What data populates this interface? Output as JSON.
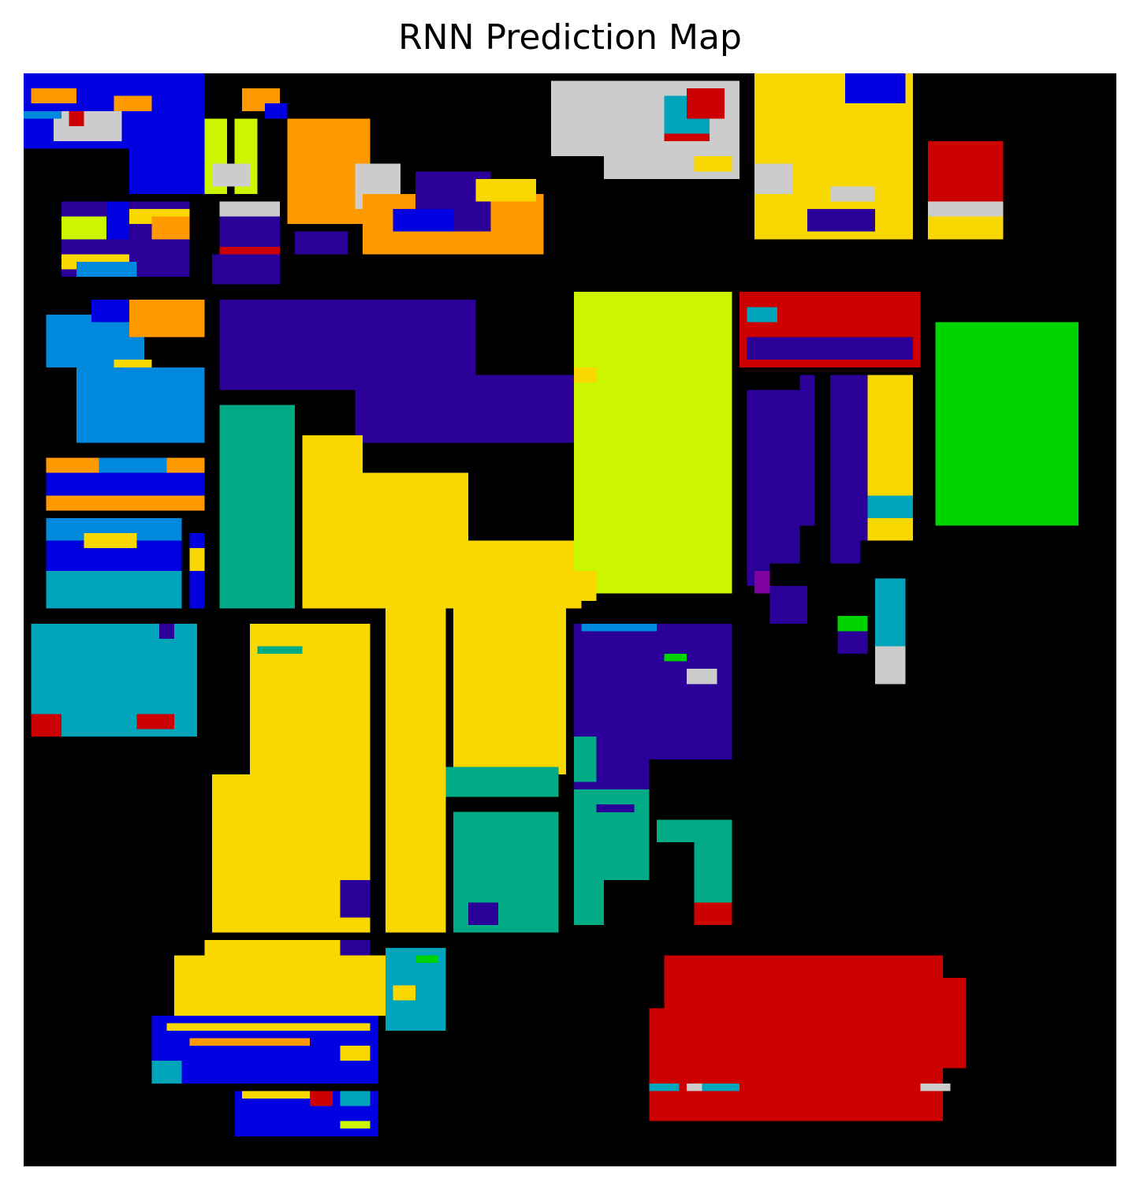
{
  "chart_data": {
    "type": "heatmap",
    "title": "RNN Prediction Map",
    "xlabel": "",
    "ylabel": "",
    "axes_visible": false,
    "grid": false,
    "legend": "none",
    "grid_size": [
      145,
      145
    ],
    "class_colors": {
      "background": "#000000",
      "blue": "#0000e0",
      "indigo": "#2a0098",
      "sky_blue": "#0088dd",
      "teal": "#00a5bc",
      "green_teal": "#00aa85",
      "green": "#00d400",
      "chartreuse": "#ccf500",
      "yellow": "#f8d800",
      "orange": "#ff9900",
      "red": "#cc0000",
      "light_gray": "#cccccc",
      "purple": "#8000a0"
    },
    "regions": [
      {
        "cls": "blue",
        "c": 0,
        "r": 0,
        "w": 24,
        "h": 10
      },
      {
        "cls": "blue",
        "c": 14,
        "r": 5,
        "w": 10,
        "h": 11
      },
      {
        "cls": "light_gray",
        "c": 4,
        "r": 5,
        "w": 9,
        "h": 4
      },
      {
        "cls": "sky_blue",
        "c": 0,
        "r": 5,
        "w": 5,
        "h": 1
      },
      {
        "cls": "orange",
        "c": 1,
        "r": 2,
        "w": 6,
        "h": 2
      },
      {
        "cls": "orange",
        "c": 12,
        "r": 3,
        "w": 5,
        "h": 2
      },
      {
        "cls": "red",
        "c": 6,
        "r": 5,
        "w": 2,
        "h": 2
      },
      {
        "cls": "indigo",
        "c": 5,
        "r": 17,
        "w": 17,
        "h": 10
      },
      {
        "cls": "chartreuse",
        "c": 5,
        "r": 19,
        "w": 6,
        "h": 3
      },
      {
        "cls": "yellow",
        "c": 14,
        "r": 18,
        "w": 8,
        "h": 2
      },
      {
        "cls": "orange",
        "c": 17,
        "r": 19,
        "w": 5,
        "h": 3
      },
      {
        "cls": "blue",
        "c": 11,
        "r": 17,
        "w": 3,
        "h": 5
      },
      {
        "cls": "yellow",
        "c": 5,
        "r": 24,
        "w": 9,
        "h": 2
      },
      {
        "cls": "sky_blue",
        "c": 7,
        "r": 25,
        "w": 8,
        "h": 2
      },
      {
        "cls": "chartreuse",
        "c": 24,
        "r": 6,
        "w": 3,
        "h": 10
      },
      {
        "cls": "chartreuse",
        "c": 28,
        "r": 6,
        "w": 3,
        "h": 10
      },
      {
        "cls": "light_gray",
        "c": 25,
        "r": 12,
        "w": 5,
        "h": 3
      },
      {
        "cls": "orange",
        "c": 35,
        "r": 6,
        "w": 11,
        "h": 14
      },
      {
        "cls": "orange",
        "c": 29,
        "r": 2,
        "w": 5,
        "h": 3
      },
      {
        "cls": "blue",
        "c": 32,
        "r": 4,
        "w": 3,
        "h": 2
      },
      {
        "cls": "light_gray",
        "c": 44,
        "r": 12,
        "w": 6,
        "h": 6
      },
      {
        "cls": "orange",
        "c": 45,
        "r": 16,
        "w": 24,
        "h": 8
      },
      {
        "cls": "indigo",
        "c": 52,
        "r": 13,
        "w": 10,
        "h": 8
      },
      {
        "cls": "blue",
        "c": 49,
        "r": 18,
        "w": 8,
        "h": 3
      },
      {
        "cls": "yellow",
        "c": 60,
        "r": 14,
        "w": 8,
        "h": 3
      },
      {
        "cls": "light_gray",
        "c": 26,
        "r": 17,
        "w": 8,
        "h": 3
      },
      {
        "cls": "indigo",
        "c": 26,
        "r": 19,
        "w": 8,
        "h": 5
      },
      {
        "cls": "red",
        "c": 26,
        "r": 23,
        "w": 8,
        "h": 1
      },
      {
        "cls": "indigo",
        "c": 25,
        "r": 24,
        "w": 9,
        "h": 4
      },
      {
        "cls": "indigo",
        "c": 36,
        "r": 21,
        "w": 7,
        "h": 3
      },
      {
        "cls": "light_gray",
        "c": 70,
        "r": 1,
        "w": 25,
        "h": 10
      },
      {
        "cls": "light_gray",
        "c": 77,
        "r": 11,
        "w": 18,
        "h": 3
      },
      {
        "cls": "teal",
        "c": 85,
        "r": 3,
        "w": 6,
        "h": 5
      },
      {
        "cls": "red",
        "c": 88,
        "r": 2,
        "w": 5,
        "h": 4
      },
      {
        "cls": "red",
        "c": 85,
        "r": 8,
        "w": 6,
        "h": 1
      },
      {
        "cls": "yellow",
        "c": 89,
        "r": 11,
        "w": 5,
        "h": 2
      },
      {
        "cls": "yellow",
        "c": 97,
        "r": 0,
        "w": 21,
        "h": 22
      },
      {
        "cls": "blue",
        "c": 109,
        "r": 0,
        "w": 8,
        "h": 4
      },
      {
        "cls": "light_gray",
        "c": 97,
        "r": 12,
        "w": 5,
        "h": 4
      },
      {
        "cls": "indigo",
        "c": 104,
        "r": 18,
        "w": 9,
        "h": 3
      },
      {
        "cls": "light_gray",
        "c": 107,
        "r": 15,
        "w": 6,
        "h": 2
      },
      {
        "cls": "red",
        "c": 120,
        "r": 9,
        "w": 10,
        "h": 8
      },
      {
        "cls": "light_gray",
        "c": 120,
        "r": 17,
        "w": 10,
        "h": 2
      },
      {
        "cls": "yellow",
        "c": 120,
        "r": 19,
        "w": 10,
        "h": 3
      },
      {
        "cls": "sky_blue",
        "c": 3,
        "r": 32,
        "w": 13,
        "h": 7
      },
      {
        "cls": "sky_blue",
        "c": 7,
        "r": 39,
        "w": 17,
        "h": 10
      },
      {
        "cls": "orange",
        "c": 14,
        "r": 30,
        "w": 10,
        "h": 5
      },
      {
        "cls": "blue",
        "c": 9,
        "r": 30,
        "w": 5,
        "h": 3
      },
      {
        "cls": "yellow",
        "c": 12,
        "r": 38,
        "w": 5,
        "h": 1
      },
      {
        "cls": "orange",
        "c": 3,
        "r": 51,
        "w": 21,
        "h": 7
      },
      {
        "cls": "blue",
        "c": 3,
        "r": 53,
        "w": 21,
        "h": 3
      },
      {
        "cls": "sky_blue",
        "c": 10,
        "r": 51,
        "w": 9,
        "h": 2
      },
      {
        "cls": "blue",
        "c": 3,
        "r": 59,
        "w": 18,
        "h": 12
      },
      {
        "cls": "sky_blue",
        "c": 3,
        "r": 59,
        "w": 18,
        "h": 3
      },
      {
        "cls": "yellow",
        "c": 8,
        "r": 61,
        "w": 7,
        "h": 2
      },
      {
        "cls": "teal",
        "c": 3,
        "r": 66,
        "w": 18,
        "h": 5
      },
      {
        "cls": "blue",
        "c": 22,
        "r": 61,
        "w": 2,
        "h": 10
      },
      {
        "cls": "yellow",
        "c": 22,
        "r": 63,
        "w": 2,
        "h": 3
      },
      {
        "cls": "indigo",
        "c": 26,
        "r": 30,
        "w": 34,
        "h": 12
      },
      {
        "cls": "indigo",
        "c": 44,
        "r": 40,
        "w": 30,
        "h": 9
      },
      {
        "cls": "green_teal",
        "c": 26,
        "r": 44,
        "w": 10,
        "h": 27
      },
      {
        "cls": "green_teal",
        "c": 36,
        "r": 48,
        "w": 0,
        "h": 0
      },
      {
        "cls": "yellow",
        "c": 37,
        "r": 48,
        "w": 8,
        "h": 23
      },
      {
        "cls": "yellow",
        "c": 45,
        "r": 53,
        "w": 14,
        "h": 18
      },
      {
        "cls": "yellow",
        "c": 49,
        "r": 62,
        "w": 25,
        "h": 9
      },
      {
        "cls": "chartreuse",
        "c": 73,
        "r": 29,
        "w": 21,
        "h": 40
      },
      {
        "cls": "yellow",
        "c": 73,
        "r": 39,
        "w": 3,
        "h": 2
      },
      {
        "cls": "yellow",
        "c": 73,
        "r": 66,
        "w": 3,
        "h": 4
      },
      {
        "cls": "red",
        "c": 95,
        "r": 29,
        "w": 24,
        "h": 10
      },
      {
        "cls": "teal",
        "c": 96,
        "r": 31,
        "w": 4,
        "h": 2
      },
      {
        "cls": "indigo",
        "c": 96,
        "r": 35,
        "w": 22,
        "h": 3
      },
      {
        "cls": "indigo",
        "c": 96,
        "r": 42,
        "w": 7,
        "h": 23
      },
      {
        "cls": "indigo",
        "c": 103,
        "r": 40,
        "w": 2,
        "h": 20
      },
      {
        "cls": "indigo",
        "c": 107,
        "r": 40,
        "w": 4,
        "h": 25
      },
      {
        "cls": "indigo",
        "c": 111,
        "r": 40,
        "w": 3,
        "h": 22
      },
      {
        "cls": "blue",
        "c": 113,
        "r": 46,
        "w": 1,
        "h": 10
      },
      {
        "cls": "yellow",
        "c": 113,
        "r": 55,
        "w": 1,
        "h": 4
      },
      {
        "cls": "yellow",
        "c": 112,
        "r": 40,
        "w": 6,
        "h": 22
      },
      {
        "cls": "teal",
        "c": 112,
        "r": 56,
        "w": 6,
        "h": 3
      },
      {
        "cls": "green",
        "c": 121,
        "r": 33,
        "w": 19,
        "h": 27
      },
      {
        "cls": "indigo",
        "c": 96,
        "r": 64,
        "w": 3,
        "h": 4
      },
      {
        "cls": "purple",
        "c": 97,
        "r": 66,
        "w": 2,
        "h": 3
      },
      {
        "cls": "indigo",
        "c": 99,
        "r": 68,
        "w": 5,
        "h": 5
      },
      {
        "cls": "teal",
        "c": 113,
        "r": 67,
        "w": 4,
        "h": 9
      },
      {
        "cls": "light_gray",
        "c": 113,
        "r": 76,
        "w": 4,
        "h": 5
      },
      {
        "cls": "green",
        "c": 108,
        "r": 72,
        "w": 4,
        "h": 2
      },
      {
        "cls": "indigo",
        "c": 108,
        "r": 74,
        "w": 4,
        "h": 3
      },
      {
        "cls": "teal",
        "c": 1,
        "r": 73,
        "w": 22,
        "h": 15
      },
      {
        "cls": "indigo",
        "c": 18,
        "r": 73,
        "w": 2,
        "h": 2
      },
      {
        "cls": "red",
        "c": 1,
        "r": 85,
        "w": 4,
        "h": 3
      },
      {
        "cls": "red",
        "c": 15,
        "r": 85,
        "w": 5,
        "h": 2
      },
      {
        "cls": "yellow",
        "c": 30,
        "r": 73,
        "w": 16,
        "h": 20
      },
      {
        "cls": "yellow",
        "c": 25,
        "r": 93,
        "w": 21,
        "h": 21
      },
      {
        "cls": "green_teal",
        "c": 31,
        "r": 76,
        "w": 6,
        "h": 1
      },
      {
        "cls": "yellow",
        "c": 48,
        "r": 63,
        "w": 8,
        "h": 51
      },
      {
        "cls": "yellow",
        "c": 57,
        "r": 71,
        "w": 15,
        "h": 22
      },
      {
        "cls": "green_teal",
        "c": 56,
        "r": 92,
        "w": 15,
        "h": 4
      },
      {
        "cls": "green_teal",
        "c": 57,
        "r": 98,
        "w": 14,
        "h": 16
      },
      {
        "cls": "indigo",
        "c": 42,
        "r": 107,
        "w": 4,
        "h": 5
      },
      {
        "cls": "indigo",
        "c": 59,
        "r": 110,
        "w": 4,
        "h": 3
      },
      {
        "cls": "indigo",
        "c": 73,
        "r": 73,
        "w": 21,
        "h": 18
      },
      {
        "cls": "indigo",
        "c": 73,
        "r": 91,
        "w": 10,
        "h": 4
      },
      {
        "cls": "sky_blue",
        "c": 74,
        "r": 73,
        "w": 10,
        "h": 1
      },
      {
        "cls": "light_gray",
        "c": 88,
        "r": 79,
        "w": 4,
        "h": 2
      },
      {
        "cls": "green",
        "c": 85,
        "r": 77,
        "w": 3,
        "h": 1
      },
      {
        "cls": "green_teal",
        "c": 73,
        "r": 88,
        "w": 3,
        "h": 6
      },
      {
        "cls": "green_teal",
        "c": 73,
        "r": 95,
        "w": 10,
        "h": 12
      },
      {
        "cls": "green_teal",
        "c": 73,
        "r": 107,
        "w": 4,
        "h": 6
      },
      {
        "cls": "indigo",
        "c": 76,
        "r": 97,
        "w": 5,
        "h": 1
      },
      {
        "cls": "green_teal",
        "c": 84,
        "r": 99,
        "w": 10,
        "h": 3
      },
      {
        "cls": "green_teal",
        "c": 89,
        "r": 102,
        "w": 5,
        "h": 9
      },
      {
        "cls": "red",
        "c": 89,
        "r": 110,
        "w": 5,
        "h": 3
      },
      {
        "cls": "yellow",
        "c": 20,
        "r": 117,
        "w": 29,
        "h": 8
      },
      {
        "cls": "yellow",
        "c": 24,
        "r": 115,
        "w": 22,
        "h": 2
      },
      {
        "cls": "indigo",
        "c": 42,
        "r": 115,
        "w": 4,
        "h": 2
      },
      {
        "cls": "teal",
        "c": 48,
        "r": 116,
        "w": 8,
        "h": 11
      },
      {
        "cls": "green",
        "c": 52,
        "r": 117,
        "w": 3,
        "h": 1
      },
      {
        "cls": "yellow",
        "c": 49,
        "r": 121,
        "w": 3,
        "h": 2
      },
      {
        "cls": "blue",
        "c": 17,
        "r": 125,
        "w": 30,
        "h": 9
      },
      {
        "cls": "teal",
        "c": 17,
        "r": 131,
        "w": 4,
        "h": 3
      },
      {
        "cls": "yellow",
        "c": 19,
        "r": 126,
        "w": 27,
        "h": 1
      },
      {
        "cls": "orange",
        "c": 22,
        "r": 128,
        "w": 16,
        "h": 1
      },
      {
        "cls": "yellow",
        "c": 42,
        "r": 129,
        "w": 4,
        "h": 2
      },
      {
        "cls": "blue",
        "c": 28,
        "r": 135,
        "w": 19,
        "h": 6
      },
      {
        "cls": "yellow",
        "c": 29,
        "r": 135,
        "w": 9,
        "h": 1
      },
      {
        "cls": "red",
        "c": 38,
        "r": 135,
        "w": 3,
        "h": 2
      },
      {
        "cls": "teal",
        "c": 42,
        "r": 135,
        "w": 4,
        "h": 2
      },
      {
        "cls": "chartreuse",
        "c": 42,
        "r": 139,
        "w": 4,
        "h": 1
      },
      {
        "cls": "red",
        "c": 85,
        "r": 117,
        "w": 37,
        "h": 22
      },
      {
        "cls": "red",
        "c": 83,
        "r": 124,
        "w": 2,
        "h": 15
      },
      {
        "cls": "red",
        "c": 122,
        "r": 120,
        "w": 3,
        "h": 12
      },
      {
        "cls": "teal",
        "c": 83,
        "r": 134,
        "w": 4,
        "h": 1
      },
      {
        "cls": "light_gray",
        "c": 88,
        "r": 134,
        "w": 2,
        "h": 1
      },
      {
        "cls": "teal",
        "c": 90,
        "r": 134,
        "w": 5,
        "h": 1
      },
      {
        "cls": "light_gray",
        "c": 119,
        "r": 134,
        "w": 4,
        "h": 1
      }
    ]
  }
}
